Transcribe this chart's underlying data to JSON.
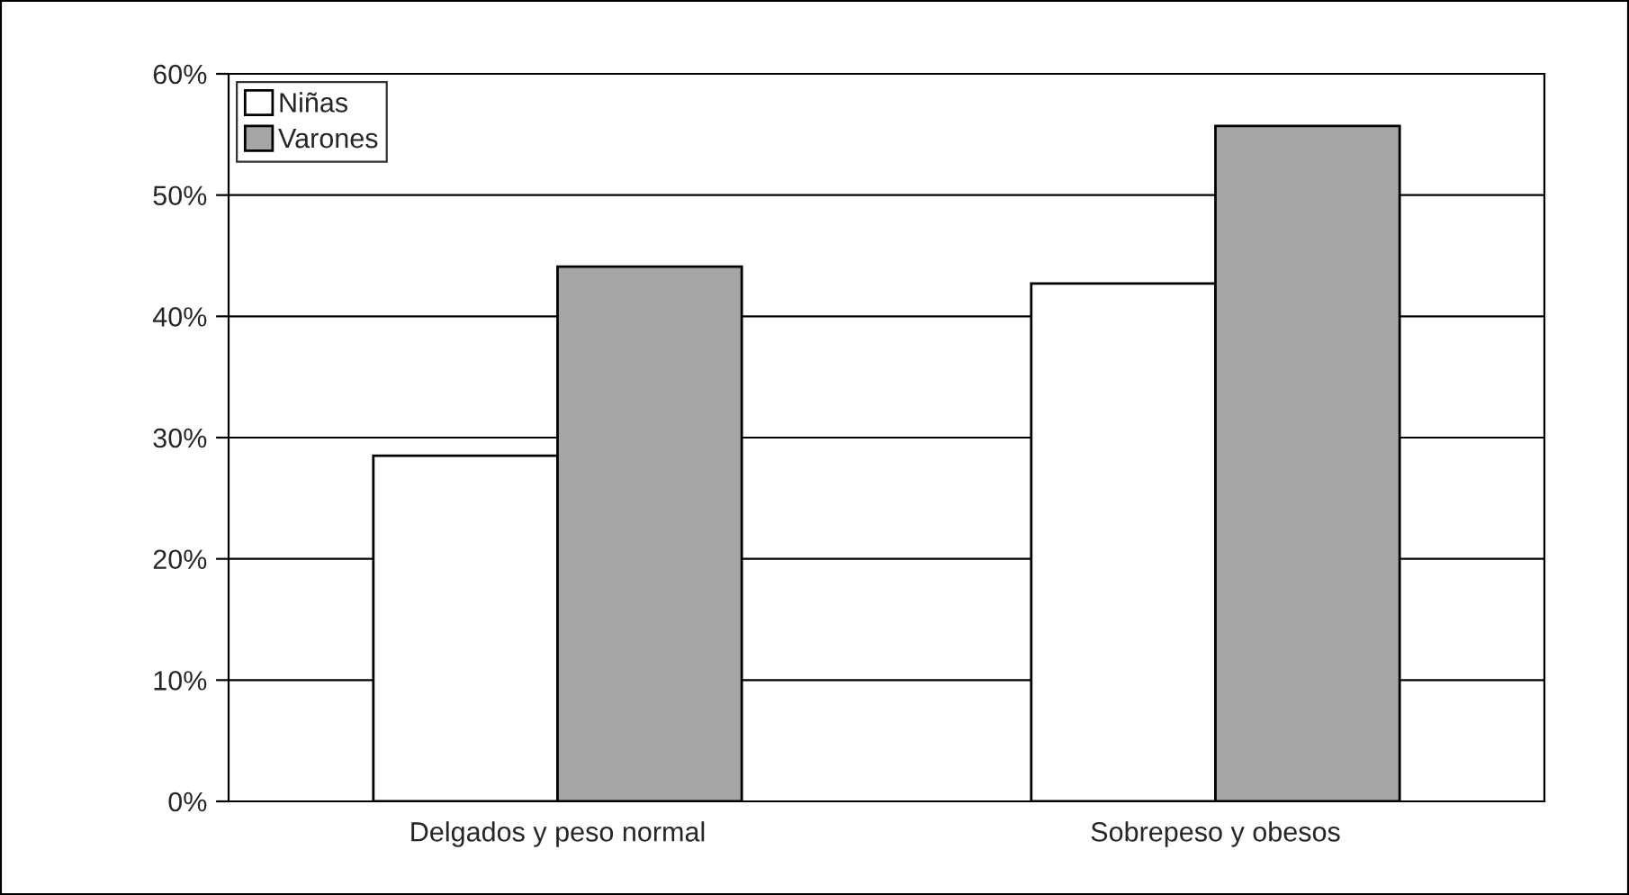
{
  "chart_data": {
    "type": "bar",
    "categories": [
      "Delgados y peso normal",
      "Sobrepeso y obesos"
    ],
    "series": [
      {
        "name": "Niñas",
        "color": "#ffffff",
        "values": [
          28.5,
          42.7
        ]
      },
      {
        "name": "Varones",
        "color": "#a6a6a6",
        "values": [
          44.1,
          55.7
        ]
      }
    ],
    "ylim": [
      0,
      60
    ],
    "yticks": [
      {
        "value": 0,
        "label": "0%"
      },
      {
        "value": 10,
        "label": "10%"
      },
      {
        "value": 20,
        "label": "20%"
      },
      {
        "value": 30,
        "label": "30%"
      },
      {
        "value": 40,
        "label": "40%"
      },
      {
        "value": 50,
        "label": "50%"
      },
      {
        "value": 60,
        "label": "60%"
      }
    ],
    "grid": "y",
    "legend": "top left"
  }
}
